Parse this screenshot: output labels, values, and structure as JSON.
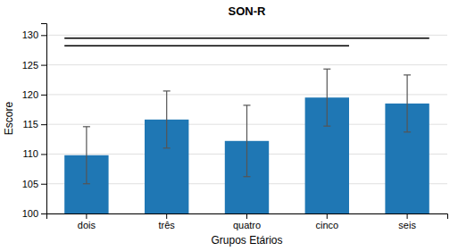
{
  "chart_data": {
    "type": "bar",
    "title": "SON-R",
    "xlabel": "Grupos Etários",
    "ylabel": "Escore",
    "categories": [
      "dois",
      "três",
      "quatro",
      "cinco",
      "seis"
    ],
    "values": [
      109.8,
      115.8,
      112.2,
      119.5,
      118.5
    ],
    "errors": [
      4.8,
      4.8,
      6.0,
      4.8,
      4.8
    ],
    "significance_lines": [
      {
        "start": "dois",
        "end": "seis",
        "y": 129.5
      },
      {
        "start": "dois",
        "end": "cinco",
        "y": 128.2
      }
    ],
    "ylim": [
      100,
      132
    ],
    "yticks": [
      100,
      105,
      110,
      115,
      120,
      125,
      130
    ],
    "grid": true
  }
}
